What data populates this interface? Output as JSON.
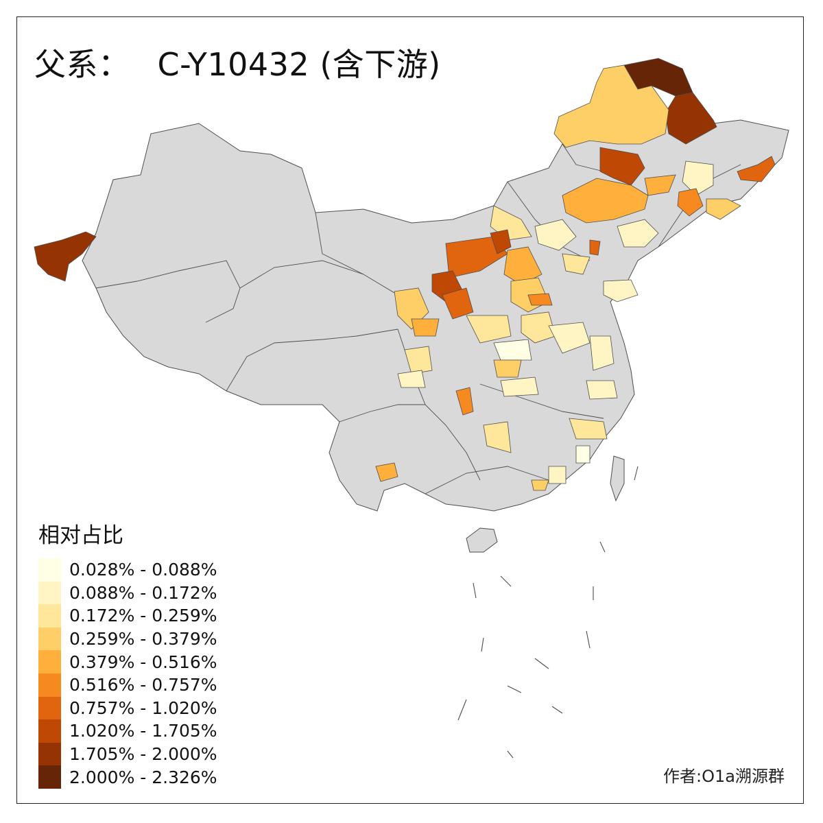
{
  "title": {
    "prefix": "父系：",
    "haplogroup": "C-Y10432 (含下游)"
  },
  "legend": {
    "title": "相对占比",
    "items": [
      {
        "label": "0.028% - 0.088%",
        "color": "#FFFFE5"
      },
      {
        "label": "0.088% - 0.172%",
        "color": "#FFF5C4"
      },
      {
        "label": "0.172% - 0.259%",
        "color": "#FEE79A"
      },
      {
        "label": "0.259% - 0.379%",
        "color": "#FECF66"
      },
      {
        "label": "0.379% - 0.516%",
        "color": "#FEAF3C"
      },
      {
        "label": "0.516% - 0.757%",
        "color": "#F6891F"
      },
      {
        "label": "0.757% - 1.020%",
        "color": "#E1650F"
      },
      {
        "label": "1.020% - 1.705%",
        "color": "#C04805"
      },
      {
        "label": "1.705% - 2.000%",
        "color": "#953303"
      },
      {
        "label": "2.000% - 2.326%",
        "color": "#662506"
      }
    ]
  },
  "map": {
    "no_data_color": "#D9D9D9",
    "border_color": "#4D4D4D"
  },
  "credit": "作者:O1a溯源群"
}
